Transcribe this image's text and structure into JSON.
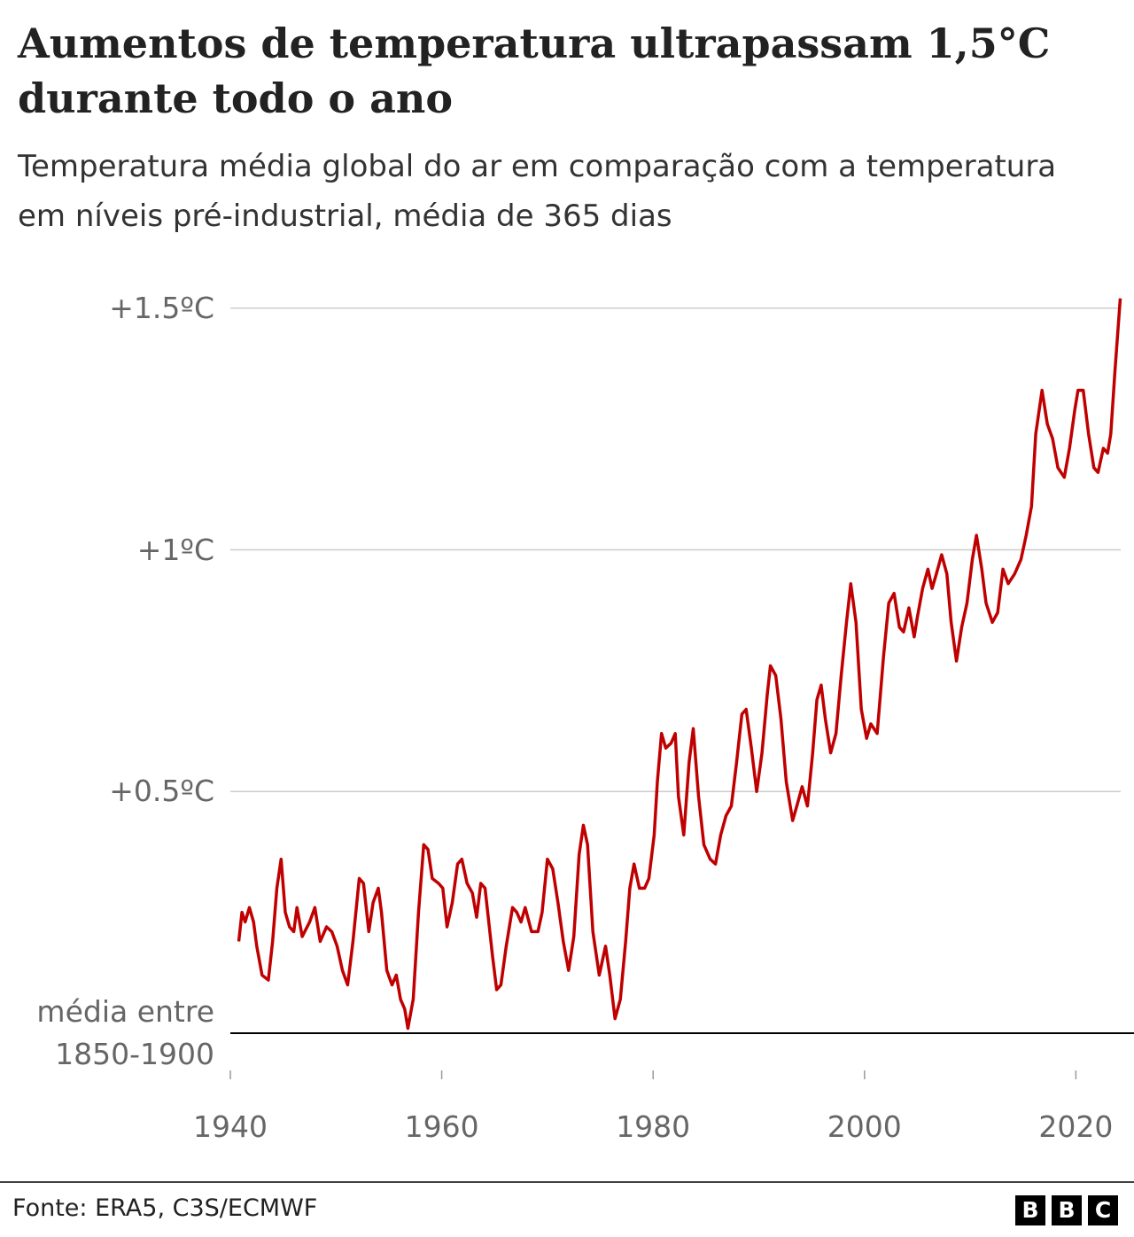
{
  "chart_data": {
    "type": "line",
    "title": "Aumentos de temperatura ultrapassam 1,5°C durante todo o ano",
    "subtitle": "Temperatura média global do ar em comparação com a temperatura em níveis pré-industrial, média de 365 dias",
    "source": "Fonte: ERA5, C3S/ECMWF",
    "logo": [
      "B",
      "B",
      "C"
    ],
    "color": "#c00000",
    "grid": true,
    "xlim": [
      1940,
      2025.5
    ],
    "xticks": [
      1940,
      1960,
      1980,
      2000,
      2020
    ],
    "ylim": [
      0,
      1.53
    ],
    "yticks": [
      {
        "value": 0,
        "label": "média entre 1850-1900"
      },
      {
        "value": 0.5,
        "label": "+0.5ºC"
      },
      {
        "value": 1,
        "label": "+1ºC"
      },
      {
        "value": 1.5,
        "label": "+1.5ºC"
      }
    ],
    "x": [
      1940.8,
      1941.1,
      1941.4,
      1941.8,
      1942.2,
      1942.5,
      1943.0,
      1943.6,
      1944.0,
      1944.4,
      1944.8,
      1945.2,
      1945.6,
      1946.0,
      1946.3,
      1946.8,
      1947.5,
      1948.0,
      1948.5,
      1949.1,
      1949.6,
      1950.1,
      1950.6,
      1951.1,
      1951.6,
      1952.2,
      1952.6,
      1953.1,
      1953.5,
      1954.0,
      1954.3,
      1954.8,
      1955.3,
      1955.7,
      1956.1,
      1956.5,
      1956.8,
      1957.3,
      1957.8,
      1958.3,
      1958.7,
      1959.1,
      1959.7,
      1960.1,
      1960.5,
      1961.0,
      1961.5,
      1961.9,
      1962.4,
      1962.9,
      1963.3,
      1963.7,
      1964.1,
      1964.8,
      1965.2,
      1965.6,
      1966.1,
      1966.7,
      1967.1,
      1967.5,
      1967.9,
      1968.5,
      1969.1,
      1969.5,
      1970.0,
      1970.5,
      1971.0,
      1971.5,
      1972.0,
      1972.5,
      1973.0,
      1973.4,
      1973.8,
      1974.3,
      1974.9,
      1975.5,
      1975.9,
      1976.4,
      1976.9,
      1977.4,
      1977.8,
      1978.2,
      1978.7,
      1979.2,
      1979.6,
      1980.1,
      1980.4,
      1980.8,
      1981.2,
      1981.7,
      1982.1,
      1982.4,
      1982.9,
      1983.4,
      1983.8,
      1984.3,
      1984.8,
      1985.4,
      1985.9,
      1986.4,
      1986.9,
      1987.4,
      1987.9,
      1988.4,
      1988.8,
      1989.3,
      1989.8,
      1990.3,
      1990.8,
      1991.1,
      1991.6,
      1992.1,
      1992.6,
      1993.2,
      1993.6,
      1994.1,
      1994.6,
      1995.1,
      1995.5,
      1995.9,
      1996.3,
      1996.8,
      1997.3,
      1997.8,
      1998.3,
      1998.7,
      1999.2,
      1999.7,
      2000.2,
      2000.6,
      2001.2,
      2001.8,
      2002.3,
      2002.8,
      2003.3,
      2003.7,
      2004.2,
      2004.7,
      2005.0,
      2005.5,
      2006.0,
      2006.4,
      2006.8,
      2007.3,
      2007.8,
      2008.2,
      2008.7,
      2009.2,
      2009.7,
      2010.2,
      2010.6,
      2011.1,
      2011.5,
      2012.1,
      2012.6,
      2013.1,
      2013.6,
      2014.2,
      2014.8,
      2015.3,
      2015.8,
      2016.2,
      2016.8,
      2017.3,
      2017.8,
      2018.3,
      2018.9,
      2019.4,
      2019.9,
      2020.2,
      2020.7,
      2021.2,
      2021.7,
      2022.1,
      2022.6,
      2023.0,
      2023.3,
      2023.7,
      2024.2
    ],
    "values": [
      0.19,
      0.25,
      0.23,
      0.26,
      0.23,
      0.18,
      0.12,
      0.11,
      0.19,
      0.3,
      0.36,
      0.25,
      0.22,
      0.21,
      0.26,
      0.2,
      0.23,
      0.26,
      0.19,
      0.22,
      0.21,
      0.18,
      0.13,
      0.1,
      0.19,
      0.32,
      0.31,
      0.21,
      0.27,
      0.3,
      0.25,
      0.13,
      0.1,
      0.12,
      0.07,
      0.05,
      0.01,
      0.07,
      0.25,
      0.39,
      0.38,
      0.32,
      0.31,
      0.3,
      0.22,
      0.27,
      0.35,
      0.36,
      0.31,
      0.29,
      0.24,
      0.31,
      0.3,
      0.16,
      0.09,
      0.1,
      0.18,
      0.26,
      0.25,
      0.23,
      0.26,
      0.21,
      0.21,
      0.25,
      0.36,
      0.34,
      0.27,
      0.19,
      0.13,
      0.2,
      0.37,
      0.43,
      0.39,
      0.21,
      0.12,
      0.18,
      0.12,
      0.03,
      0.07,
      0.19,
      0.3,
      0.35,
      0.3,
      0.3,
      0.32,
      0.41,
      0.52,
      0.62,
      0.59,
      0.6,
      0.62,
      0.49,
      0.41,
      0.56,
      0.63,
      0.49,
      0.39,
      0.36,
      0.35,
      0.41,
      0.45,
      0.47,
      0.56,
      0.66,
      0.67,
      0.59,
      0.5,
      0.58,
      0.7,
      0.76,
      0.74,
      0.65,
      0.52,
      0.44,
      0.47,
      0.51,
      0.47,
      0.58,
      0.69,
      0.72,
      0.65,
      0.58,
      0.62,
      0.74,
      0.85,
      0.93,
      0.85,
      0.67,
      0.61,
      0.64,
      0.62,
      0.78,
      0.89,
      0.91,
      0.84,
      0.83,
      0.88,
      0.82,
      0.86,
      0.92,
      0.96,
      0.92,
      0.95,
      0.99,
      0.95,
      0.85,
      0.77,
      0.84,
      0.89,
      0.98,
      1.03,
      0.96,
      0.89,
      0.85,
      0.87,
      0.96,
      0.93,
      0.95,
      0.98,
      1.03,
      1.09,
      1.24,
      1.33,
      1.26,
      1.23,
      1.17,
      1.15,
      1.21,
      1.29,
      1.33,
      1.33,
      1.24,
      1.17,
      1.16,
      1.21,
      1.2,
      1.24,
      1.37,
      1.52
    ]
  }
}
